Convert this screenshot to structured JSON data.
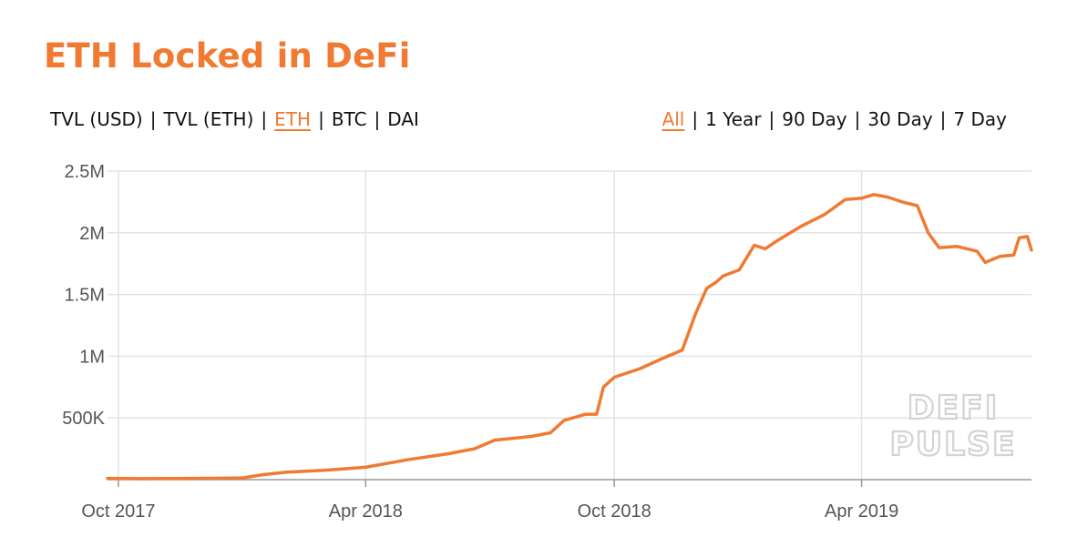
{
  "title": "ETH Locked in DeFi",
  "accent_color": "#f07a32",
  "toggles": {
    "metric": [
      {
        "label": "TVL (USD)",
        "active": false
      },
      {
        "label": "TVL (ETH)",
        "active": false
      },
      {
        "label": "ETH",
        "active": true
      },
      {
        "label": "BTC",
        "active": false
      },
      {
        "label": "DAI",
        "active": false
      }
    ],
    "range": [
      {
        "label": "All",
        "active": true
      },
      {
        "label": "1 Year",
        "active": false
      },
      {
        "label": "90 Day",
        "active": false
      },
      {
        "label": "30 Day",
        "active": false
      },
      {
        "label": "7 Day",
        "active": false
      }
    ]
  },
  "watermark": [
    "DEFI",
    "PULSE"
  ],
  "chart_data": {
    "type": "line",
    "title": "ETH Locked in DeFi",
    "xlabel": "",
    "ylabel": "",
    "x_ticks": [
      "Oct 2017",
      "Apr 2018",
      "Oct 2018",
      "Apr 2019"
    ],
    "y_ticks": [
      "500K",
      "1M",
      "1.5M",
      "2M",
      "2.5M"
    ],
    "ylim": [
      0,
      2500000
    ],
    "grid": true,
    "series": [
      {
        "color": "#f07a32",
        "points": [
          [
            "2017-09-23",
            10000
          ],
          [
            "2017-10-15",
            8000
          ],
          [
            "2017-11-15",
            9000
          ],
          [
            "2017-12-15",
            12000
          ],
          [
            "2018-01-01",
            15000
          ],
          [
            "2018-01-15",
            40000
          ],
          [
            "2018-02-01",
            60000
          ],
          [
            "2018-03-01",
            75000
          ],
          [
            "2018-04-01",
            100000
          ],
          [
            "2018-05-01",
            160000
          ],
          [
            "2018-06-01",
            210000
          ],
          [
            "2018-06-20",
            250000
          ],
          [
            "2018-07-05",
            320000
          ],
          [
            "2018-08-01",
            350000
          ],
          [
            "2018-08-15",
            380000
          ],
          [
            "2018-08-25",
            480000
          ],
          [
            "2018-09-10",
            530000
          ],
          [
            "2018-09-18",
            530000
          ],
          [
            "2018-09-23",
            750000
          ],
          [
            "2018-10-01",
            830000
          ],
          [
            "2018-10-20",
            900000
          ],
          [
            "2018-11-05",
            980000
          ],
          [
            "2018-11-20",
            1050000
          ],
          [
            "2018-11-30",
            1350000
          ],
          [
            "2018-12-08",
            1550000
          ],
          [
            "2018-12-15",
            1600000
          ],
          [
            "2018-12-20",
            1650000
          ],
          [
            "2019-01-01",
            1700000
          ],
          [
            "2019-01-12",
            1900000
          ],
          [
            "2019-01-20",
            1870000
          ],
          [
            "2019-01-28",
            1930000
          ],
          [
            "2019-02-15",
            2050000
          ],
          [
            "2019-03-05",
            2150000
          ],
          [
            "2019-03-20",
            2270000
          ],
          [
            "2019-04-01",
            2280000
          ],
          [
            "2019-04-10",
            2310000
          ],
          [
            "2019-04-20",
            2290000
          ],
          [
            "2019-05-01",
            2250000
          ],
          [
            "2019-05-12",
            2220000
          ],
          [
            "2019-05-20",
            2000000
          ],
          [
            "2019-05-28",
            1880000
          ],
          [
            "2019-06-10",
            1890000
          ],
          [
            "2019-06-25",
            1850000
          ],
          [
            "2019-07-01",
            1760000
          ],
          [
            "2019-07-12",
            1810000
          ],
          [
            "2019-07-22",
            1820000
          ],
          [
            "2019-07-26",
            1960000
          ],
          [
            "2019-08-01",
            1970000
          ],
          [
            "2019-08-04",
            1860000
          ]
        ]
      }
    ]
  }
}
